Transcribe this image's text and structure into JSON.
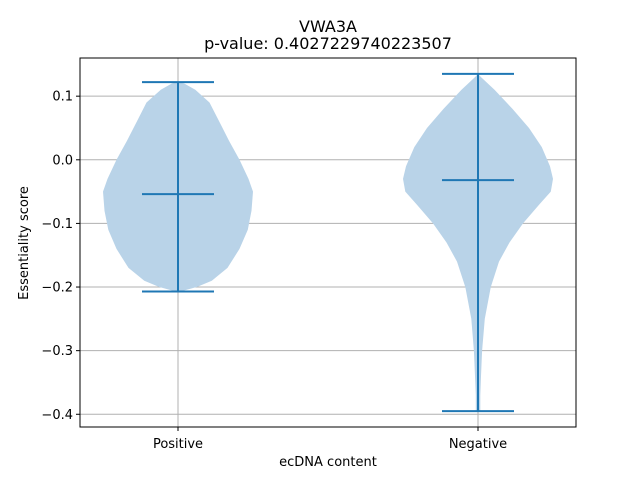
{
  "chart_data": {
    "type": "violin",
    "title": "VWA3A",
    "subtitle": "p-value: 0.4027229740223507",
    "xlabel": "ecDNA content",
    "ylabel": "Essentiality score",
    "categories": [
      "Positive",
      "Negative"
    ],
    "ylim": [
      -0.42,
      0.16
    ],
    "yticks": [
      0.1,
      0.0,
      -0.1,
      -0.2,
      -0.3,
      -0.4
    ],
    "ytick_labels": [
      "0.1",
      "0.0",
      "−0.1",
      "−0.2",
      "−0.3",
      "−0.4"
    ],
    "grid": true,
    "violins": [
      {
        "name": "Positive",
        "max": 0.122,
        "min": -0.207,
        "median": -0.054,
        "density": [
          [
            0.122,
            0.0
          ],
          [
            0.12,
            0.08
          ],
          [
            0.11,
            0.23
          ],
          [
            0.09,
            0.42
          ],
          [
            0.06,
            0.55
          ],
          [
            0.03,
            0.68
          ],
          [
            0.0,
            0.82
          ],
          [
            -0.03,
            0.94
          ],
          [
            -0.05,
            1.0
          ],
          [
            -0.08,
            0.98
          ],
          [
            -0.11,
            0.93
          ],
          [
            -0.14,
            0.82
          ],
          [
            -0.17,
            0.66
          ],
          [
            -0.19,
            0.45
          ],
          [
            -0.2,
            0.25
          ],
          [
            -0.207,
            0.03
          ]
        ]
      },
      {
        "name": "Negative",
        "max": 0.135,
        "min": -0.395,
        "median": -0.032,
        "density": [
          [
            0.135,
            0.0
          ],
          [
            0.13,
            0.04
          ],
          [
            0.11,
            0.22
          ],
          [
            0.08,
            0.46
          ],
          [
            0.05,
            0.68
          ],
          [
            0.02,
            0.85
          ],
          [
            -0.01,
            0.96
          ],
          [
            -0.03,
            1.0
          ],
          [
            -0.05,
            0.97
          ],
          [
            -0.07,
            0.82
          ],
          [
            -0.1,
            0.6
          ],
          [
            -0.13,
            0.42
          ],
          [
            -0.16,
            0.28
          ],
          [
            -0.2,
            0.17
          ],
          [
            -0.25,
            0.09
          ],
          [
            -0.3,
            0.055
          ],
          [
            -0.34,
            0.04
          ],
          [
            -0.37,
            0.03
          ],
          [
            -0.395,
            0.03
          ]
        ]
      }
    ],
    "colors": {
      "body": "#b9d3e8",
      "stat_line": "#1f77b4",
      "grid": "#b0b0b0",
      "axis": "#000000"
    }
  }
}
